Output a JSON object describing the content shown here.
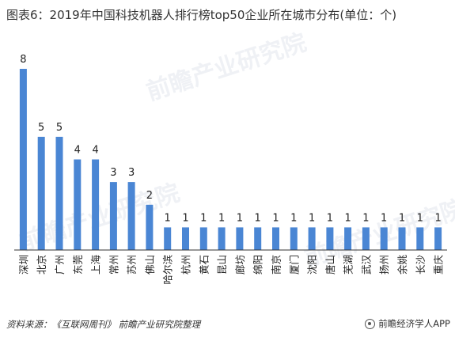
{
  "title": "图表6：2019年中国科技机器人排行榜top50企业所在城市分布(单位：个)",
  "source": "资料来源：《互联网周刊》 前瞻产业研究院整理",
  "brand": "前瞻经济学人APP",
  "watermark": "前瞻产业研究院",
  "colors": {
    "bar": "#4a86d4",
    "axis": "#333333"
  },
  "chart_data": {
    "type": "bar",
    "categories": [
      "深圳",
      "北京",
      "广州",
      "东莞",
      "上海",
      "常州",
      "苏州",
      "佛山",
      "哈尔滨",
      "杭州",
      "黄石",
      "昆山",
      "廊坊",
      "绵阳",
      "南京",
      "厦门",
      "沈阳",
      "唐山",
      "芜湖",
      "武汉",
      "扬州",
      "余姚",
      "长沙",
      "重庆"
    ],
    "values": [
      8,
      5,
      5,
      4,
      4,
      3,
      3,
      2,
      1,
      1,
      1,
      1,
      1,
      1,
      1,
      1,
      1,
      1,
      1,
      1,
      1,
      1,
      1,
      1
    ],
    "title": "图表6：2019年中国科技机器人排行榜top50企业所在城市分布(单位：个)",
    "xlabel": "",
    "ylabel": "",
    "ylim": [
      0,
      8
    ],
    "grid": false,
    "data_labels": true
  }
}
